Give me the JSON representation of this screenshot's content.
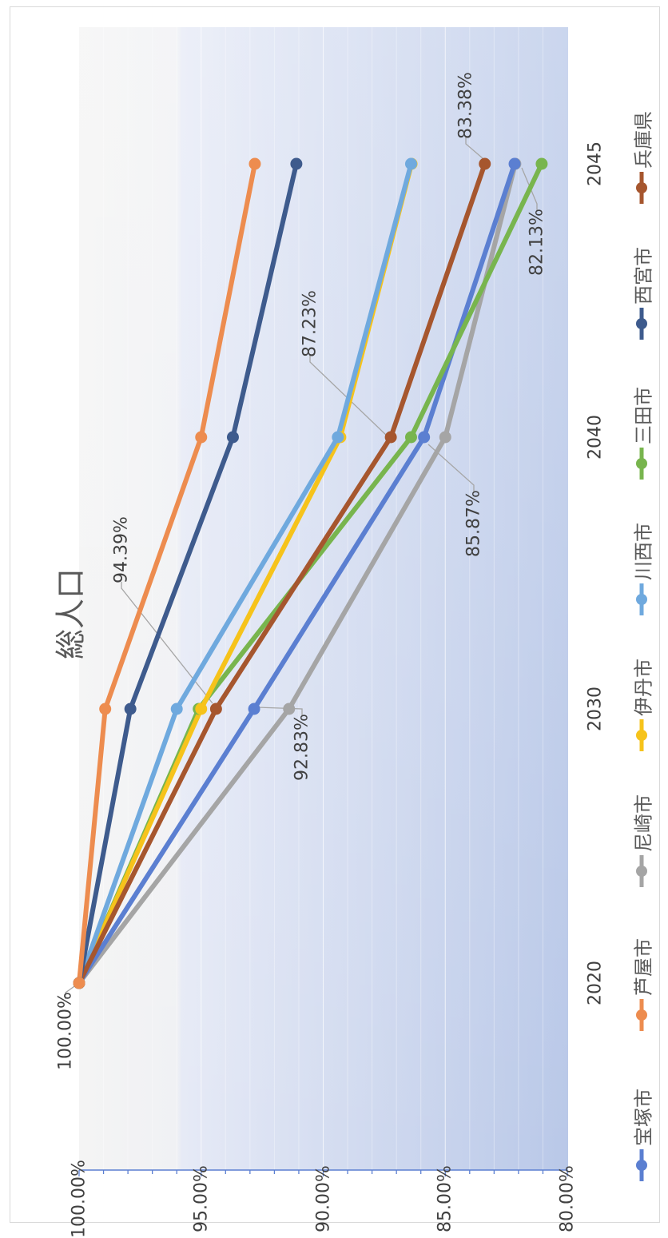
{
  "chart_data": {
    "type": "line",
    "title": "総人口",
    "x": [
      "2020",
      "2030",
      "2040",
      "2045"
    ],
    "ylim": [
      0.8,
      1.0
    ],
    "y_ticks": [
      "100.00%",
      "95.00%",
      "90.00%",
      "85.00%",
      "80.00%"
    ],
    "grid": true,
    "legend_position": "bottom",
    "series": [
      {
        "name": "宝塚市",
        "color": "#5B7FD1",
        "values": [
          1.0,
          0.9283,
          0.8587,
          0.8216
        ]
      },
      {
        "name": "芦屋市",
        "color": "#ED8C4F",
        "values": [
          1.0,
          0.9893,
          0.95,
          0.928
        ]
      },
      {
        "name": "尼崎市",
        "color": "#A5A5A5",
        "values": [
          1.0,
          0.914,
          0.85,
          0.8213
        ]
      },
      {
        "name": "伊丹市",
        "color": "#F6C31B",
        "values": [
          1.0,
          0.95,
          0.893,
          0.8638
        ]
      },
      {
        "name": "川西市",
        "color": "#6FA9DE",
        "values": [
          1.0,
          0.96,
          0.894,
          0.864
        ]
      },
      {
        "name": "三田市",
        "color": "#78B54E",
        "values": [
          1.0,
          0.951,
          0.864,
          0.8105
        ]
      },
      {
        "name": "西宮市",
        "color": "#3E5B8D",
        "values": [
          1.0,
          0.979,
          0.937,
          0.911
        ]
      },
      {
        "name": "兵庫県",
        "color": "#A6562E",
        "values": [
          1.0,
          0.9439,
          0.8723,
          0.8338
        ]
      }
    ],
    "annotations": [
      {
        "text": "100.00%",
        "series": "宝塚市",
        "x": "2020"
      },
      {
        "text": "94.39%",
        "series": "兵庫県",
        "x": "2030"
      },
      {
        "text": "92.83%",
        "series": "宝塚市",
        "x": "2030"
      },
      {
        "text": "87.23%",
        "series": "兵庫県",
        "x": "2040"
      },
      {
        "text": "85.87%",
        "series": "宝塚市",
        "x": "2040"
      },
      {
        "text": "83.38%",
        "series": "兵庫県",
        "x": "2045"
      },
      {
        "text": "82.13%",
        "series": "尼崎市",
        "x": "2045"
      }
    ]
  }
}
